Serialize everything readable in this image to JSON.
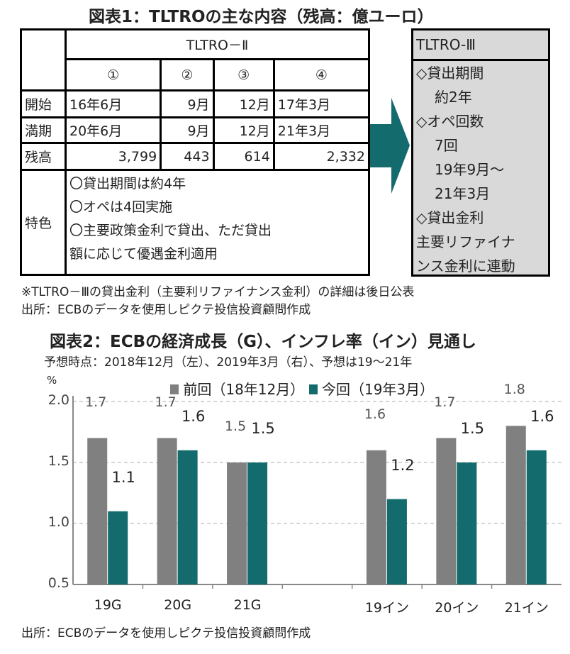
{
  "fig1": {
    "title": "図表1：TLTROの主な内容（残高：億ユーロ）",
    "tltro2": "TLTRO－Ⅱ",
    "cols": [
      "①",
      "②",
      "③",
      "④"
    ],
    "rows": [
      {
        "label": "開始",
        "values": [
          "16年6月",
          "9月",
          "12月",
          "17年3月"
        ]
      },
      {
        "label": "満期",
        "values": [
          "20年6月",
          "9月",
          "12月",
          "21年3月"
        ]
      },
      {
        "label": "残高",
        "values": [
          "3,799",
          "443",
          "614",
          "2,332"
        ]
      }
    ],
    "feature_label": "特色",
    "features": [
      "〇貸出期間は約4年",
      "〇オペは4回実施",
      "〇主要政策金利で貸出、ただ貸出",
      "額に応じて優遇金利適用"
    ],
    "tltro3": {
      "title": "TLTRO-Ⅲ",
      "lines": [
        "◇貸出期間",
        "約2年",
        "◇オペ回数",
        "7回",
        "19年9月～",
        "21年3月",
        "◇貸出金利",
        "主要リファイナ",
        "ンス金利に連動"
      ]
    },
    "note": "※TLTRO－Ⅲの貸出金利（主要利リファイナンス金利）の詳細は後日公表",
    "source": "出所：ECBのデータを使用しピクテ投信投資顧問作成",
    "arrow_color": "#146b6e"
  },
  "chart_data": {
    "type": "bar",
    "title": "図表2：ECBの経済成長（G）、インフレ率（イン）見通し",
    "subtitle": "予想時点：2018年12月（左）、2019年3月（右）、予想は19～21年",
    "ylabel": "%",
    "ylim": [
      0.5,
      2.0
    ],
    "yticks": [
      "2.0",
      "1.5",
      "1.0",
      "0.5"
    ],
    "categories": [
      "19G",
      "20G",
      "21G",
      "",
      "19イン",
      "20イン",
      "21イン"
    ],
    "series": [
      {
        "name": "前回（18年12月）",
        "color": "#808080",
        "values": [
          1.7,
          1.7,
          1.5,
          null,
          1.6,
          1.7,
          1.8
        ]
      },
      {
        "name": "今回（19年3月）",
        "color": "#136b6d",
        "values": [
          1.1,
          1.6,
          1.5,
          null,
          1.2,
          1.5,
          1.6
        ]
      }
    ],
    "legend": "top",
    "grid": true,
    "source": "出所：ECBのデータを使用しピクテ投信投資顧問作成"
  }
}
